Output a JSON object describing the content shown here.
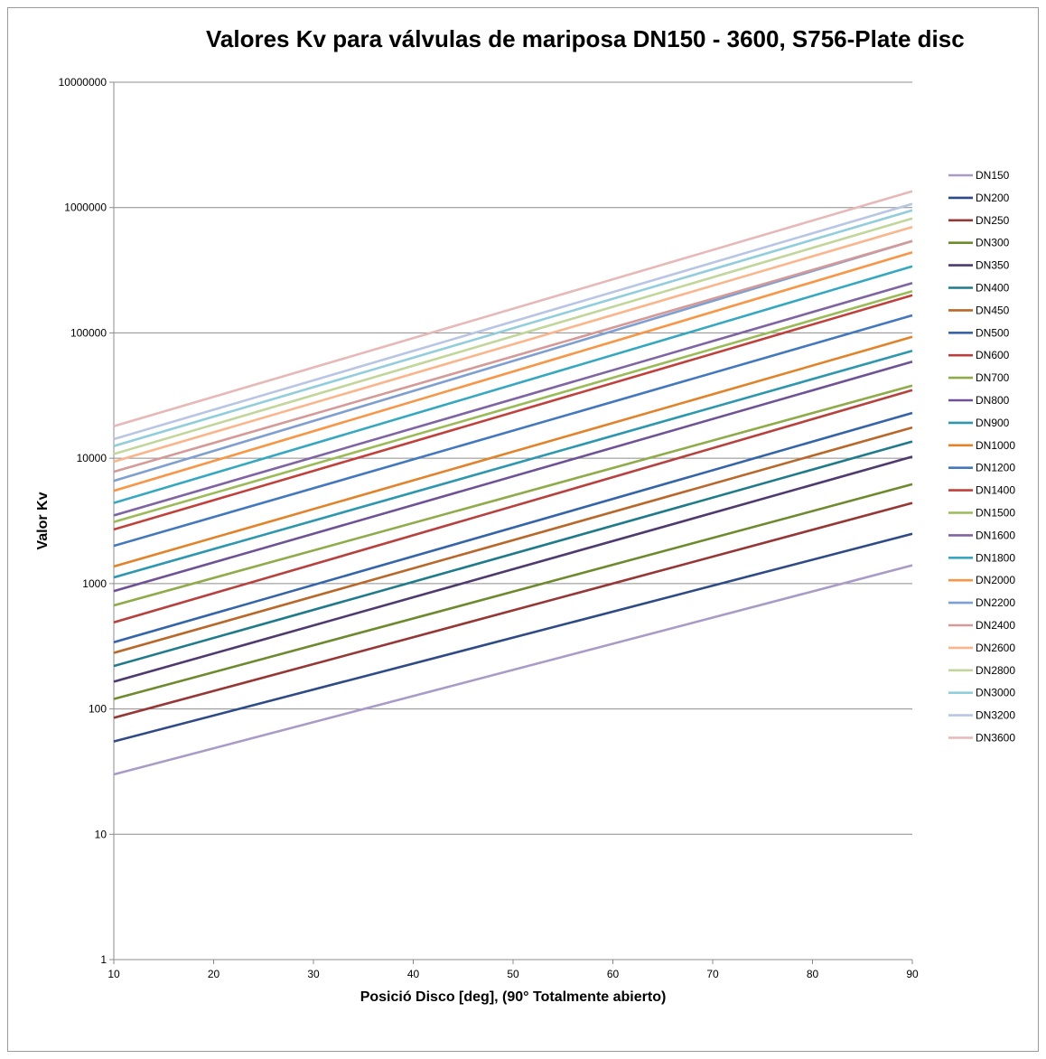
{
  "chart_data": {
    "type": "line",
    "title": "Valores Kv para válvulas de mariposa  DN150 - 3600, S756-Plate disc",
    "xlabel": "Posició Disco    [deg], (90° Totalmente abierto)",
    "ylabel": "Valor Kv",
    "x": [
      10,
      90
    ],
    "xlim": [
      10,
      90
    ],
    "xticks": [
      10,
      20,
      30,
      40,
      50,
      60,
      70,
      80,
      90
    ],
    "ylim": [
      1,
      10000000
    ],
    "yscale": "log",
    "yticks": [
      1,
      10,
      100,
      1000,
      10000,
      100000,
      1000000,
      10000000
    ],
    "ytick_labels": [
      "1",
      "10",
      "100",
      "1000",
      "10000",
      "100000",
      "1000000",
      "10000000"
    ],
    "grid": "horizontal",
    "legend_position": "right",
    "series": [
      {
        "name": "DN150",
        "color": "#a99bc6",
        "values": [
          30,
          1400
        ]
      },
      {
        "name": "DN200",
        "color": "#2f4b86",
        "values": [
          55,
          2500
        ]
      },
      {
        "name": "DN250",
        "color": "#953735",
        "values": [
          85,
          4400
        ]
      },
      {
        "name": "DN300",
        "color": "#6d8a2e",
        "values": [
          120,
          6200
        ]
      },
      {
        "name": "DN350",
        "color": "#4f3a6e",
        "values": [
          165,
          10300
        ]
      },
      {
        "name": "DN400",
        "color": "#1f7a8a",
        "values": [
          220,
          13600
        ]
      },
      {
        "name": "DN450",
        "color": "#b8682a",
        "values": [
          280,
          17600
        ]
      },
      {
        "name": "DN500",
        "color": "#3564a8",
        "values": [
          340,
          23000
        ]
      },
      {
        "name": "DN600",
        "color": "#b7413e",
        "values": [
          490,
          35000
        ]
      },
      {
        "name": "DN700",
        "color": "#8fab4a",
        "values": [
          670,
          38000
        ]
      },
      {
        "name": "DN800",
        "color": "#6e5294",
        "values": [
          870,
          59000
        ]
      },
      {
        "name": "DN900",
        "color": "#2e97ad",
        "values": [
          1120,
          72000
        ]
      },
      {
        "name": "DN1000",
        "color": "#e1832a",
        "values": [
          1370,
          93000
        ]
      },
      {
        "name": "DN1200",
        "color": "#4478be",
        "values": [
          2000,
          138000
        ]
      },
      {
        "name": "DN1400",
        "color": "#c0403c",
        "values": [
          2700,
          200000
        ]
      },
      {
        "name": "DN1500",
        "color": "#9bbb59",
        "values": [
          3100,
          215000
        ]
      },
      {
        "name": "DN1600",
        "color": "#8064a2",
        "values": [
          3500,
          250000
        ]
      },
      {
        "name": "DN1800",
        "color": "#35a8c0",
        "values": [
          4400,
          340000
        ]
      },
      {
        "name": "DN2000",
        "color": "#f79646",
        "values": [
          5500,
          440000
        ]
      },
      {
        "name": "DN2200",
        "color": "#7f9fd1",
        "values": [
          6600,
          540000
        ]
      },
      {
        "name": "DN2400",
        "color": "#d49a97",
        "values": [
          7800,
          540000
        ]
      },
      {
        "name": "DN2600",
        "color": "#fab58c",
        "values": [
          9400,
          700000
        ]
      },
      {
        "name": "DN2800",
        "color": "#c2d69b",
        "values": [
          10800,
          820000
        ]
      },
      {
        "name": "DN3000",
        "color": "#92cddc",
        "values": [
          12500,
          950000
        ]
      },
      {
        "name": "DN3200",
        "color": "#b9c6e3",
        "values": [
          14200,
          1070000
        ]
      },
      {
        "name": "DN3600",
        "color": "#e6b9b8",
        "values": [
          18000,
          1350000
        ]
      }
    ]
  }
}
